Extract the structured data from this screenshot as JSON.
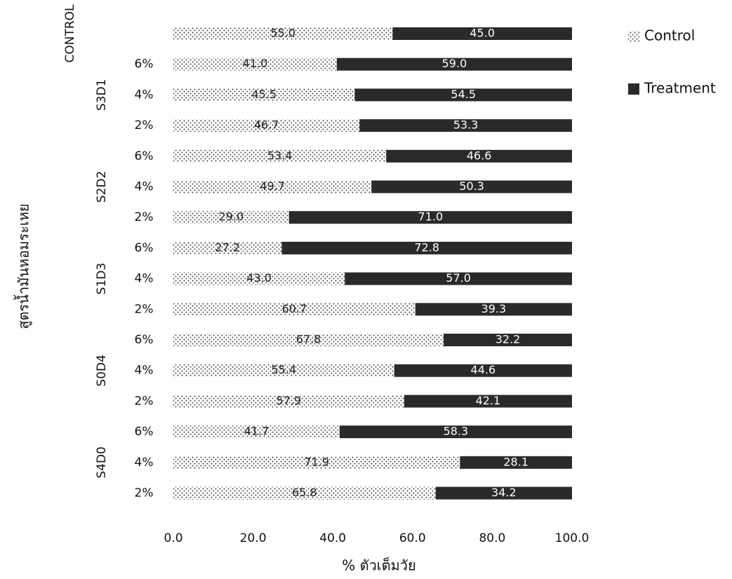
{
  "chart_data": {
    "type": "bar",
    "orientation": "horizontal",
    "stacked": true,
    "x_label": "% ตัวเต็มวัย",
    "y_label": "สูตรน้ำมันหอมระเหย",
    "categories": [
      [
        "CONTROL",
        null
      ],
      [
        "S3D1",
        "6%"
      ],
      [
        "S3D1",
        "4%"
      ],
      [
        "S3D1",
        "2%"
      ],
      [
        "S2D2",
        "6%"
      ],
      [
        "S2D2",
        "4%"
      ],
      [
        "S2D2",
        "2%"
      ],
      [
        "S1D3",
        "6%"
      ],
      [
        "S1D3",
        "4%"
      ],
      [
        "S1D3",
        "2%"
      ],
      [
        "S0D4",
        "6%"
      ],
      [
        "S0D4",
        "4%"
      ],
      [
        "S0D4",
        "2%"
      ],
      [
        "S4D0",
        "6%"
      ],
      [
        "S4D0",
        "4%"
      ],
      [
        "S4D0",
        "2%"
      ]
    ],
    "series": [
      {
        "name": "Control",
        "color": "#444444",
        "values": [
          55.0,
          41.0,
          45.5,
          46.7,
          53.4,
          49.7,
          29.0,
          27.2,
          43.0,
          60.7,
          67.8,
          55.4,
          57.9,
          41.7,
          71.9,
          65.8
        ],
        "value_labels": [
          "55.0",
          "41.0",
          "45.5",
          "46.7",
          "53.4",
          "49.7",
          "29.0",
          "27.2",
          "43.0",
          "60.7",
          "67.8",
          "55.4",
          "57.9",
          "41.7",
          "71.9",
          "65.8"
        ]
      },
      {
        "name": "Treatment",
        "color": "#2a2a2a",
        "values": [
          45.0,
          59.0,
          54.5,
          53.3,
          46.6,
          50.3,
          71.0,
          72.8,
          57.0,
          39.3,
          32.2,
          44.6,
          42.1,
          58.3,
          28.1,
          34.2
        ],
        "value_labels": [
          "45.0",
          "59.0",
          "54.5",
          "53.3",
          "46.6",
          "50.3",
          "71.0",
          "72.8",
          "57.0",
          "39.3",
          "32.2",
          "44.6",
          "42.1",
          "58.3",
          "28.1",
          "34.2"
        ]
      }
    ],
    "xlim": [
      0,
      100
    ],
    "xticks": [
      {
        "value": 0,
        "label": "0.0"
      },
      {
        "value": 20,
        "label": "20.0"
      },
      {
        "value": 40,
        "label": "40.0"
      },
      {
        "value": 60,
        "label": "60.0"
      },
      {
        "value": 80,
        "label": "80.0"
      },
      {
        "value": 100,
        "label": "100.0"
      }
    ],
    "legend": "right"
  }
}
